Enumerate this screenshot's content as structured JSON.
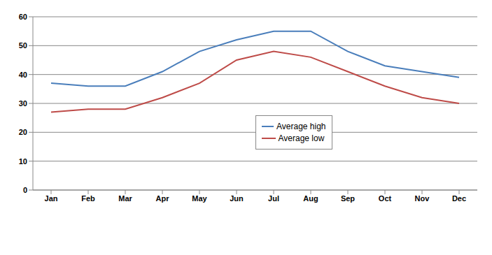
{
  "chart_data": {
    "type": "line",
    "categories": [
      "Jan",
      "Feb",
      "Mar",
      "Apr",
      "May",
      "Jun",
      "Jul",
      "Aug",
      "Sep",
      "Oct",
      "Nov",
      "Dec"
    ],
    "series": [
      {
        "name": "Average high",
        "color": "#4a7ebb",
        "values": [
          37,
          36,
          36,
          41,
          48,
          52,
          55,
          55,
          48,
          43,
          41,
          39
        ]
      },
      {
        "name": "Average low",
        "color": "#be4b48",
        "values": [
          27,
          28,
          28,
          32,
          37,
          45,
          48,
          46,
          41,
          36,
          32,
          30
        ]
      }
    ],
    "ylim": [
      0,
      60
    ],
    "yticks": [
      0,
      10,
      20,
      30,
      40,
      50,
      60
    ],
    "grid": true,
    "legend": "center",
    "marker": "none"
  }
}
